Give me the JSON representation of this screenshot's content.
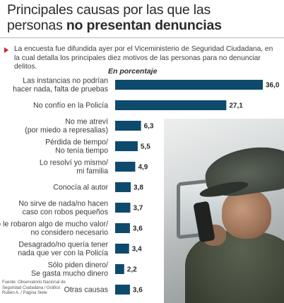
{
  "header": {
    "title_line1": "Principales causas por las que las",
    "title_line2_normal": "personas ",
    "title_line2_bold": "no presentan denuncias"
  },
  "lead_text": "La encuesta fue difundida ayer por el Viceministerio de Seguridad Ciudadana, en la cual detalla los principales diez motivos de las personas para no denunciar delitos.",
  "unit_label": "En  porcentaje",
  "source_text": "Fuente: Observatorio Nacional de Seguridad Ciudadana / Gráfico Rubén A. / Página Siete",
  "colors": {
    "bar": "#0e4a6b",
    "accent": "#d2232a"
  },
  "chart_data": {
    "type": "bar",
    "orientation": "horizontal",
    "categories": [
      [
        "Las instancias no podrían",
        "hacer nada, falta de pruebas"
      ],
      [
        "No confío en la Policía"
      ],
      [
        "No me atreví",
        "(por miedo a represalias)"
      ],
      [
        "Pérdida de tiempo/",
        "No tenía tiempo"
      ],
      [
        "Lo resolví yo mismo/",
        "mi familia"
      ],
      [
        "Conocía al autor"
      ],
      [
        "No sirve de nada/no hacen",
        "caso con robos pequeños"
      ],
      [
        "No le robaron algo de mucho valor/",
        "no considero necesario"
      ],
      [
        "Desagrado/no quería tener",
        "nada que ver con la Policía"
      ],
      [
        "Sólo piden dinero/",
        "Se gasta mucho dinero"
      ],
      [
        "Otras causas"
      ]
    ],
    "values": [
      36.0,
      27.1,
      6.3,
      5.5,
      4.9,
      3.8,
      3.7,
      3.6,
      3.4,
      2.2,
      3.6
    ],
    "value_labels": [
      "36,0",
      "27,1",
      "6,3",
      "5,5",
      "4,9",
      "3,8",
      "3,7",
      "3,6",
      "3,4",
      "2,2",
      "3,6"
    ],
    "xlim": [
      0,
      36
    ],
    "grid": false,
    "legend": "none"
  }
}
